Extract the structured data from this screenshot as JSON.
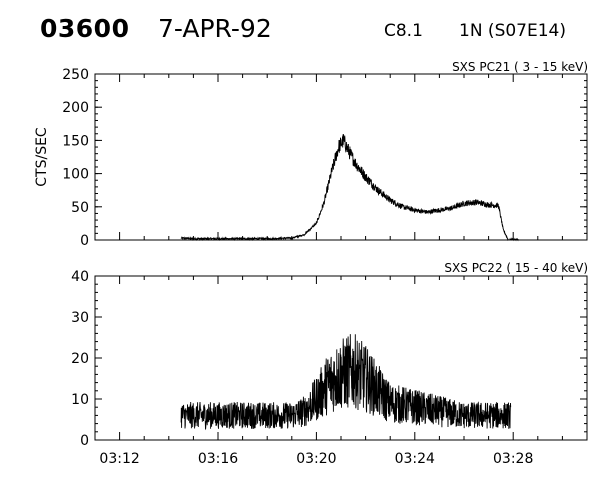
{
  "header": {
    "event_id": "03600",
    "date": "7-APR-92",
    "goes_class": "C8.1",
    "location": "1N (S07E14)"
  },
  "chart_data": [
    {
      "type": "line",
      "title": "SXS PC21  (  3 - 15 keV)",
      "ylabel": "CTS/SEC",
      "ylim": [
        0,
        250
      ],
      "yticks": [
        "0",
        "50",
        "100",
        "150",
        "200",
        "250"
      ],
      "xlim": [
        "03:11",
        "03:31"
      ],
      "grid": false,
      "series": [
        {
          "x": [
            "03:14.5",
            "03:15",
            "03:16",
            "03:17",
            "03:18",
            "03:19",
            "03:19.5",
            "03:20",
            "03:20.3",
            "03:20.6",
            "03:20.9",
            "03:21.1",
            "03:21.3",
            "03:21.6",
            "03:22",
            "03:22.5",
            "03:23",
            "03:23.5",
            "03:24",
            "03:24.5",
            "03:25",
            "03:25.5",
            "03:26",
            "03:26.5",
            "03:27",
            "03:27.4",
            "03:27.6",
            "03:27.8",
            "03:28.2"
          ],
          "y": [
            3,
            2,
            2,
            2,
            2,
            3,
            8,
            25,
            55,
            100,
            140,
            150,
            135,
            115,
            95,
            75,
            60,
            50,
            45,
            42,
            45,
            48,
            55,
            57,
            53,
            52,
            15,
            0,
            1
          ]
        }
      ]
    },
    {
      "type": "line",
      "title": "SXS PC22  ( 15 - 40 keV)",
      "ylabel": "",
      "ylim": [
        0,
        40
      ],
      "yticks": [
        "0",
        "10",
        "20",
        "30",
        "40"
      ],
      "xlim": [
        "03:11",
        "03:31"
      ],
      "xticks": [
        "03:12",
        "03:16",
        "03:20",
        "03:24",
        "03:28"
      ],
      "grid": false,
      "series": [
        {
          "x": [
            "03:14.5",
            "03:15",
            "03:16",
            "03:17",
            "03:18",
            "03:19",
            "03:19.5",
            "03:20",
            "03:20.5",
            "03:21",
            "03:21.5",
            "03:22",
            "03:22.5",
            "03:23",
            "03:24",
            "03:25",
            "03:26",
            "03:27",
            "03:27.9"
          ],
          "y": [
            6,
            6,
            6,
            6,
            6,
            6,
            7,
            10,
            14,
            16,
            17,
            15,
            12,
            9,
            8,
            7,
            6,
            6,
            6
          ]
        }
      ]
    }
  ]
}
